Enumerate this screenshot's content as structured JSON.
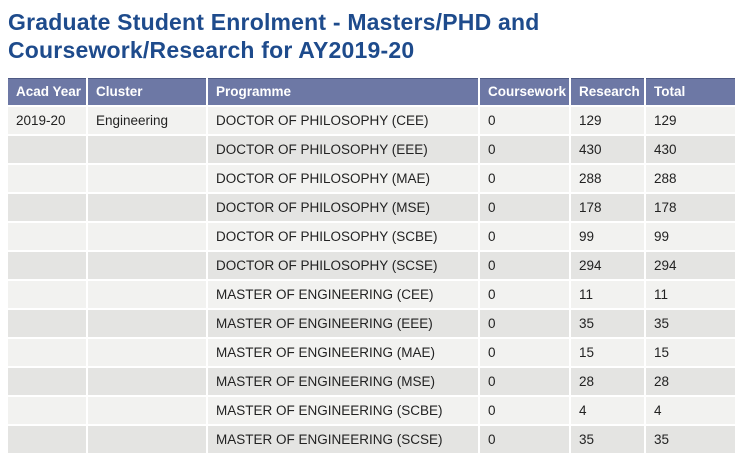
{
  "page": {
    "title": "Graduate Student Enrolment - Masters/PHD and Coursework/Research for AY2019-20"
  },
  "table": {
    "headers": [
      "Acad Year",
      "Cluster",
      "Programme",
      "Coursework",
      "Research",
      "Total"
    ],
    "rows": [
      [
        "2019-20",
        "Engineering",
        "DOCTOR OF PHILOSOPHY (CEE)",
        "0",
        "129",
        "129"
      ],
      [
        "",
        "",
        "DOCTOR OF PHILOSOPHY (EEE)",
        "0",
        "430",
        "430"
      ],
      [
        "",
        "",
        "DOCTOR OF PHILOSOPHY (MAE)",
        "0",
        "288",
        "288"
      ],
      [
        "",
        "",
        "DOCTOR OF PHILOSOPHY (MSE)",
        "0",
        "178",
        "178"
      ],
      [
        "",
        "",
        "DOCTOR OF PHILOSOPHY (SCBE)",
        "0",
        "99",
        "99"
      ],
      [
        "",
        "",
        "DOCTOR OF PHILOSOPHY (SCSE)",
        "0",
        "294",
        "294"
      ],
      [
        "",
        "",
        "MASTER OF ENGINEERING (CEE)",
        "0",
        "11",
        "11"
      ],
      [
        "",
        "",
        "MASTER OF ENGINEERING (EEE)",
        "0",
        "35",
        "35"
      ],
      [
        "",
        "",
        "MASTER OF ENGINEERING (MAE)",
        "0",
        "15",
        "15"
      ],
      [
        "",
        "",
        "MASTER OF ENGINEERING (MSE)",
        "0",
        "28",
        "28"
      ],
      [
        "",
        "",
        "MASTER OF ENGINEERING (SCBE)",
        "0",
        "4",
        "4"
      ],
      [
        "",
        "",
        "MASTER OF ENGINEERING (SCSE)",
        "0",
        "35",
        "35"
      ]
    ]
  },
  "colors": {
    "title_text": "#1e4b8c",
    "header_bg": "#6d78a5",
    "header_top_border": "#4f5a84",
    "header_text": "#ffffff",
    "row_light_bg": "#f2f2f0",
    "row_dark_bg": "#e4e4e2",
    "body_text": "#222222",
    "cell_gap": "#ffffff"
  }
}
